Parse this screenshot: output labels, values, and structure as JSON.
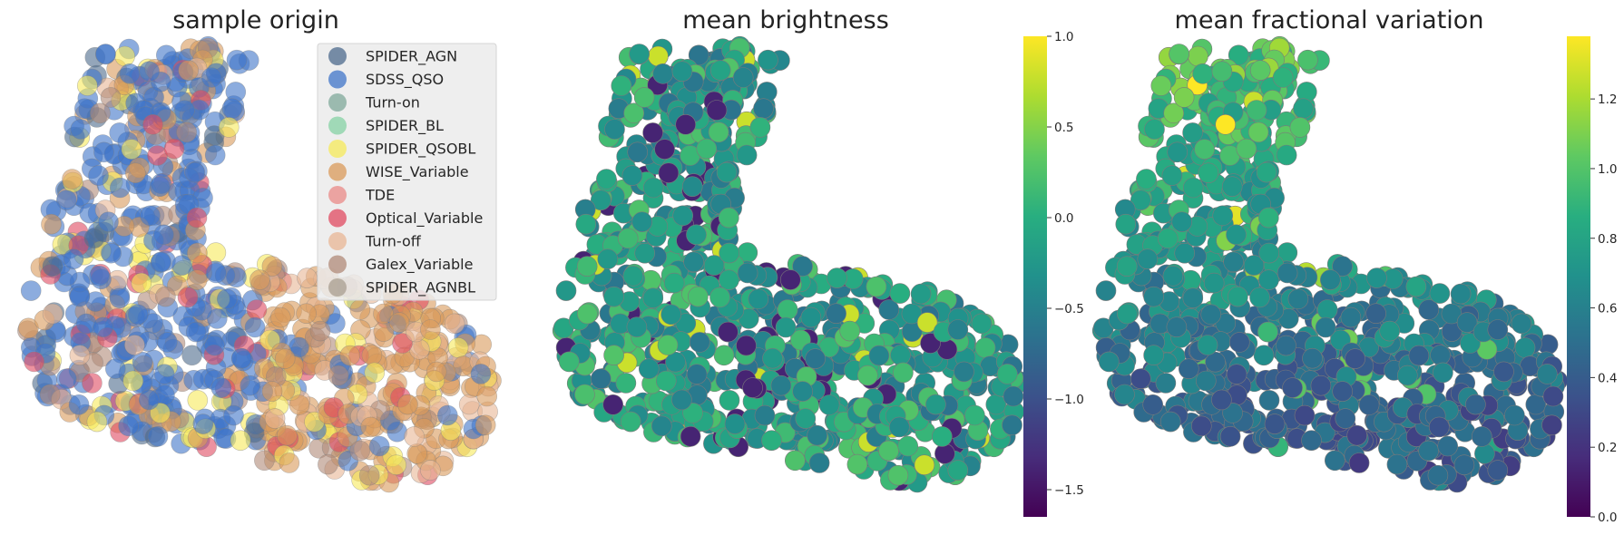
{
  "chart_data": [
    {
      "type": "scatter",
      "title": "sample origin",
      "legend": {
        "placement": "top-right",
        "entries": [
          {
            "name": "SPIDER_AGN",
            "color": "#4c6a8c"
          },
          {
            "name": "SDSS_QSO",
            "color": "#3f74c8"
          },
          {
            "name": "Turn-on",
            "color": "#7fa89a"
          },
          {
            "name": "SPIDER_BL",
            "color": "#86d1a4"
          },
          {
            "name": "SPIDER_QSOBL",
            "color": "#f6ea5a"
          },
          {
            "name": "WISE_Variable",
            "color": "#d99a5a"
          },
          {
            "name": "TDE",
            "color": "#ea8a87"
          },
          {
            "name": "Optical_Variable",
            "color": "#e04a60"
          },
          {
            "name": "Turn-off",
            "color": "#e8b694"
          },
          {
            "name": "Galex_Variable",
            "color": "#b08a78"
          },
          {
            "name": "SPIDER_AGNBL",
            "color": "#a89e90"
          }
        ]
      },
      "grid": false,
      "axes_visible": false
    },
    {
      "type": "scatter",
      "title": "mean brightness",
      "colormap": "viridis",
      "colorbar": {
        "range": [
          -1.65,
          1.0
        ],
        "ticks": [
          "1.0",
          "0.5",
          "0.0",
          "−0.5",
          "−1.0",
          "−1.5"
        ],
        "tick_values": [
          1.0,
          0.5,
          0.0,
          -0.5,
          -1.0,
          -1.5
        ]
      },
      "grid": false,
      "axes_visible": false
    },
    {
      "type": "scatter",
      "title": "mean fractional variation",
      "colormap": "viridis",
      "colorbar": {
        "range": [
          0.0,
          1.38
        ],
        "ticks": [
          "1.2",
          "1.0",
          "0.8",
          "0.6",
          "0.4",
          "0.2",
          "0.0"
        ],
        "tick_values": [
          1.2,
          1.0,
          0.8,
          0.6,
          0.4,
          0.2,
          0.0
        ]
      },
      "grid": false,
      "axes_visible": false
    }
  ]
}
